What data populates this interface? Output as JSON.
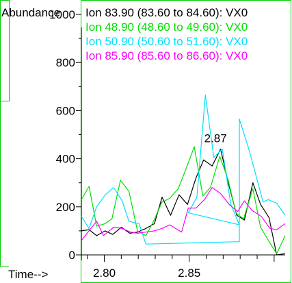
{
  "chart_data": {
    "type": "line",
    "ylabel": "Abundance",
    "xlabel": "Time-->",
    "xlim": [
      2.7865,
      2.9065
    ],
    "ylim": [
      0,
      1060
    ],
    "yticks": [
      0,
      200,
      400,
      600,
      800,
      1000
    ],
    "xticks": [
      2.8,
      2.85
    ],
    "tick_labels_y": [
      "0",
      "200",
      "400",
      "600",
      "800",
      "1000"
    ],
    "tick_labels_x": [
      "2.80",
      "2.85"
    ],
    "annotation": {
      "text": "2.87",
      "x": 2.8655,
      "y": 440
    },
    "legend": [
      {
        "label": "Ion  83.90 (83.60 to 84.60): VX0",
        "color": "#000000"
      },
      {
        "label": "Ion  48.90 (48.60 to 49.60): VX0",
        "color": "#00e000"
      },
      {
        "label": "Ion  50.90 (50.60 to 51.60): VX0",
        "color": "#00e0ff"
      },
      {
        "label": "Ion  85.90 (85.60 to 86.60): VX0",
        "color": "#ff00ff"
      }
    ],
    "series": [
      {
        "color": "#000000",
        "points": [
          [
            2.7865,
            100
          ],
          [
            2.791,
            105
          ],
          [
            2.7955,
            80
          ],
          [
            2.8005,
            100
          ],
          [
            2.805,
            85
          ],
          [
            2.81,
            115
          ],
          [
            2.815,
            90
          ],
          [
            2.8195,
            95
          ],
          [
            2.8245,
            110
          ],
          [
            2.8295,
            130
          ],
          [
            2.834,
            240
          ],
          [
            2.839,
            165
          ],
          [
            2.844,
            250
          ],
          [
            2.849,
            210
          ],
          [
            2.854,
            320
          ],
          [
            2.8585,
            395
          ],
          [
            2.8635,
            370
          ],
          [
            2.8685,
            440
          ],
          [
            2.873,
            300
          ],
          [
            2.878,
            165
          ],
          [
            2.8825,
            145
          ],
          [
            2.8875,
            300
          ],
          [
            2.892,
            210
          ],
          [
            2.897,
            155
          ],
          [
            2.9015,
            0
          ],
          [
            2.9065,
            5
          ]
        ]
      },
      {
        "color": "#00e000",
        "points": [
          [
            2.7865,
            230
          ],
          [
            2.791,
            285
          ],
          [
            2.7955,
            120
          ],
          [
            2.8005,
            130
          ],
          [
            2.8045,
            150
          ],
          [
            2.8095,
            310
          ],
          [
            2.8145,
            265
          ],
          [
            2.8195,
            100
          ],
          [
            2.8245,
            80
          ],
          [
            2.829,
            140
          ],
          [
            2.834,
            220
          ],
          [
            2.8385,
            235
          ],
          [
            2.8435,
            275
          ],
          [
            2.8485,
            365
          ],
          [
            2.853,
            450
          ],
          [
            2.858,
            245
          ],
          [
            2.8625,
            280
          ],
          [
            2.868,
            410
          ],
          [
            2.873,
            310
          ],
          [
            2.8775,
            175
          ],
          [
            2.882,
            150
          ],
          [
            2.8875,
            275
          ],
          [
            2.892,
            115
          ],
          [
            2.8975,
            50
          ],
          [
            2.9015,
            5
          ],
          [
            2.9065,
            80
          ]
        ]
      },
      {
        "color": "#00e0ff",
        "points": [
          [
            2.7865,
            160
          ],
          [
            2.791,
            110
          ],
          [
            2.7955,
            200
          ],
          [
            2.8005,
            250
          ],
          [
            2.8055,
            280
          ],
          [
            2.8105,
            225
          ],
          [
            2.8145,
            140
          ],
          [
            2.8205,
            130
          ],
          [
            2.8245,
            45
          ],
          [
            2.8795,
            55
          ],
          [
            2.8795,
            125
          ],
          [
            2.8745,
            210
          ],
          [
            2.8695,
            440
          ],
          [
            2.8645,
            405
          ],
          [
            2.8595,
            665
          ],
          [
            2.8545,
            240
          ],
          [
            2.8495,
            175
          ],
          [
            2.8795,
            125
          ],
          [
            2.8795,
            565
          ],
          [
            2.8855,
            430
          ],
          [
            2.8935,
            220
          ],
          [
            2.8965,
            230
          ],
          [
            2.9015,
            215
          ],
          [
            2.9065,
            165
          ]
        ]
      },
      {
        "color": "#ff00ff",
        "points": [
          [
            2.7865,
            60
          ],
          [
            2.7955,
            140
          ],
          [
            2.7995,
            80
          ],
          [
            2.8055,
            115
          ],
          [
            2.8105,
            110
          ],
          [
            2.8155,
            95
          ],
          [
            2.8195,
            90
          ],
          [
            2.8245,
            95
          ],
          [
            2.8295,
            100
          ],
          [
            2.834,
            110
          ],
          [
            2.8385,
            125
          ],
          [
            2.8455,
            95
          ],
          [
            2.8495,
            195
          ],
          [
            2.854,
            195
          ],
          [
            2.859,
            230
          ],
          [
            2.8635,
            280
          ],
          [
            2.8685,
            255
          ],
          [
            2.8735,
            210
          ],
          [
            2.8785,
            180
          ],
          [
            2.8825,
            225
          ],
          [
            2.887,
            185
          ],
          [
            2.8925,
            160
          ],
          [
            2.8975,
            110
          ],
          [
            2.9015,
            105
          ],
          [
            2.9065,
            130
          ]
        ]
      }
    ]
  }
}
